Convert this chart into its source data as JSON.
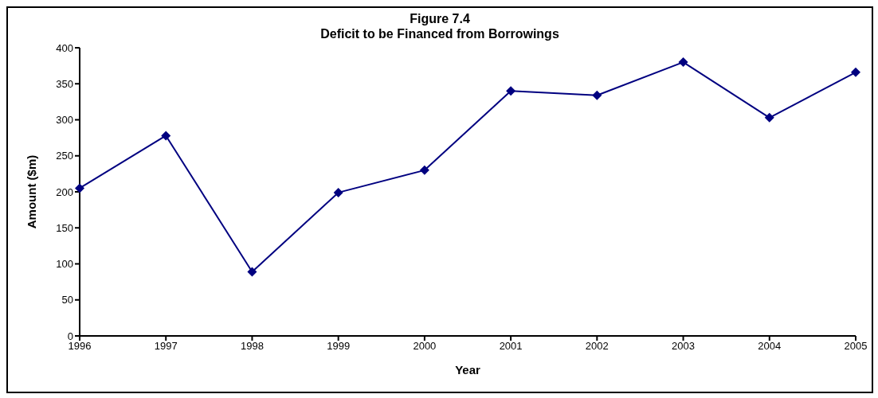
{
  "chart_data": {
    "type": "line",
    "title": "Figure 7.4",
    "subtitle": "Deficit to be Financed from Borrowings",
    "xlabel": "Year",
    "ylabel": "Amount ($m)",
    "categories": [
      "1996",
      "1997",
      "1998",
      "1999",
      "2000",
      "2001",
      "2002",
      "2003",
      "2004",
      "2005"
    ],
    "series": [
      {
        "color": "#000080",
        "values": [
          205,
          278,
          89,
          199,
          230,
          340,
          334,
          380,
          303,
          366
        ]
      }
    ],
    "ylim": [
      0,
      400
    ],
    "yticks": [
      0,
      50,
      100,
      150,
      200,
      250,
      300,
      350,
      400
    ],
    "grid": false,
    "legend": false,
    "marker": "diamond",
    "line_style": "solid"
  }
}
